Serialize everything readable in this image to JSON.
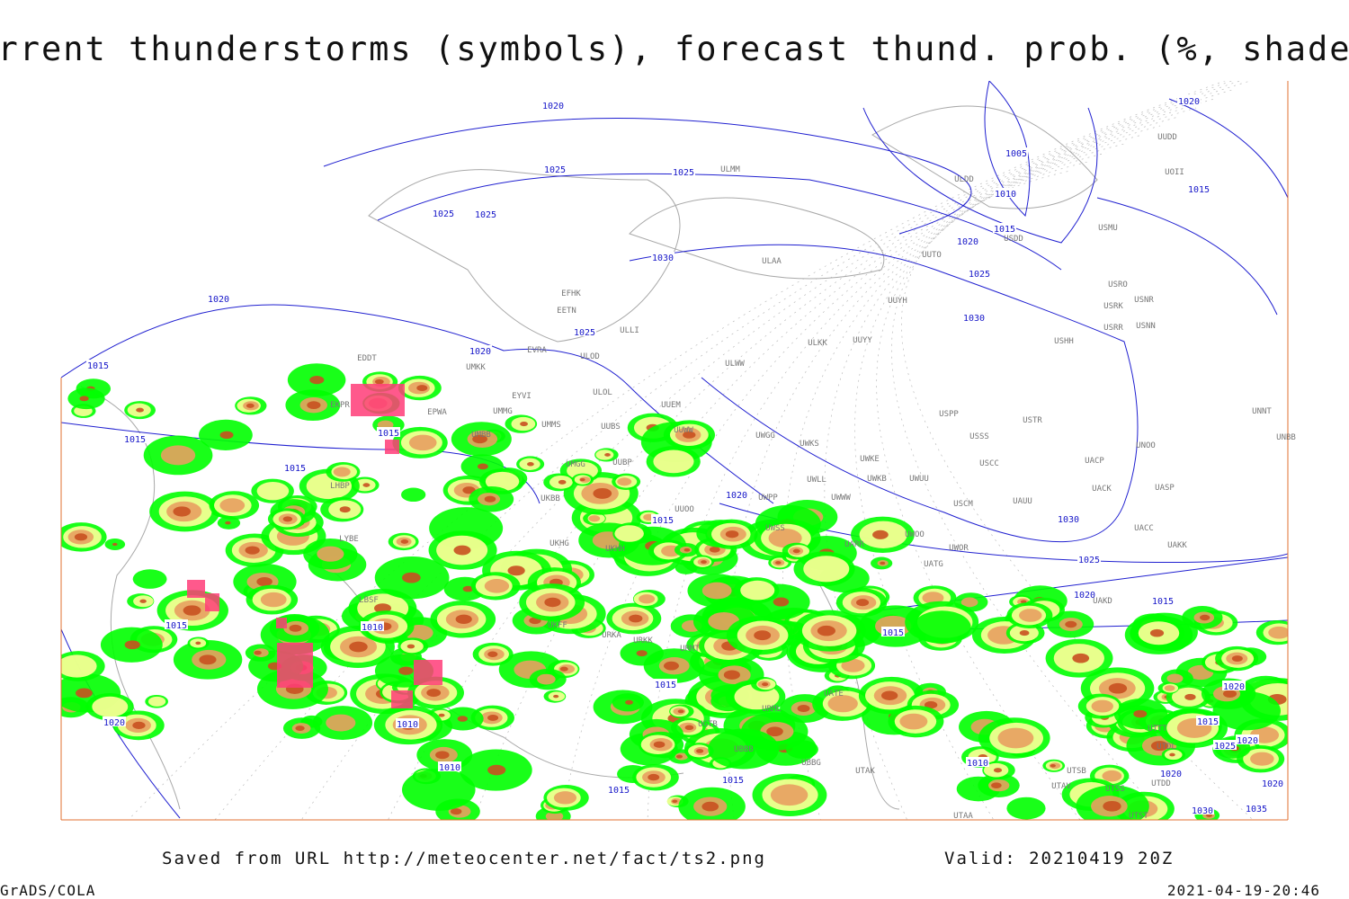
{
  "title": "Current thunderstorms (symbols), forecast thund. prob. (%, shaded)",
  "footer": {
    "source": "Saved from URL http://meteocenter.net/fact/ts2.png",
    "valid": "Valid: 20210419 20Z",
    "software": "GrADS/COLA",
    "timestamp": "2021-04-19-20:46"
  },
  "isobar_labels": [
    "1020",
    "1025",
    "1025",
    "1025",
    "1025",
    "1030",
    "1020",
    "1015",
    "1020",
    "1025",
    "1015",
    "1015",
    "1015",
    "1020",
    "1015",
    "1010",
    "1015",
    "1020",
    "1010",
    "1010",
    "1015",
    "1015",
    "1015",
    "1015",
    "1010",
    "1005",
    "1010",
    "1015",
    "1020",
    "1025",
    "1030",
    "1030",
    "1025",
    "1020",
    "1015",
    "1020",
    "1015",
    "1020",
    "1015",
    "1025",
    "1020",
    "1020",
    "1020",
    "1030",
    "1035"
  ],
  "stations": [
    "ULMM",
    "ULDD",
    "UUDD",
    "UOII",
    "USMU",
    "USDD",
    "UUTO",
    "ULAA",
    "USRO",
    "USNR",
    "USRK",
    "USNN",
    "USRR",
    "UUYH",
    "USHH",
    "ULKK",
    "UUYY",
    "ULWW",
    "EFHK",
    "EETN",
    "ULLI",
    "EVRA",
    "ULOD",
    "UMKK",
    "EYVI",
    "ULOL",
    "UMMG",
    "UUEM",
    "EPWA",
    "EDDT",
    "EKPR",
    "UUWW",
    "UMBB",
    "UMMS",
    "UUBS",
    "UWGG",
    "UWKS",
    "USPP",
    "USTR",
    "USSS",
    "UNOO",
    "UNBB",
    "UNNT",
    "UWKE",
    "USCC",
    "UACP",
    "UMGG",
    "UUBP",
    "UWLL",
    "UWWW",
    "UWKB",
    "UWUU",
    "UACK",
    "UASP",
    "USCM",
    "UAUU",
    "UWPP",
    "UKBB",
    "UUOO",
    "UWSS",
    "UARR",
    "UACC",
    "UAKK",
    "UWOO",
    "UWOR",
    "UATG",
    "UKHH",
    "UKHG",
    "LYBE",
    "LBSF",
    "UKFF",
    "URKA",
    "URKK",
    "URMT",
    "UAKD",
    "UGTB",
    "URML",
    "UBBB",
    "UBBG",
    "UTAK",
    "UATE",
    "UTTT",
    "UTDL",
    "UTSB",
    "UTAV",
    "UTSS",
    "UTDD",
    "UTST",
    "UTAA",
    "LHBP"
  ]
}
